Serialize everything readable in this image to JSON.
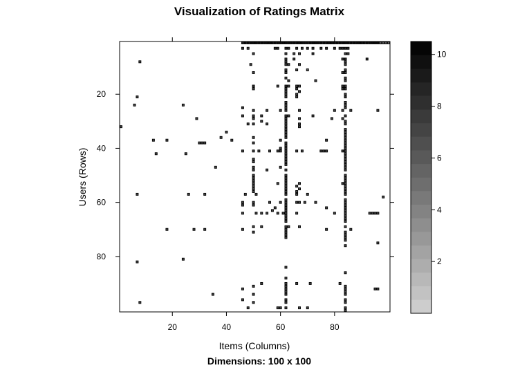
{
  "chart_data": {
    "type": "heatmap",
    "title": "Visualization of Ratings Matrix",
    "subtitle": "Dimensions: 100 x 100",
    "xlabel": "Items (Columns)",
    "ylabel": "Users (Rows)",
    "xlim": [
      0.5,
      100.5
    ],
    "ylim": [
      0.5,
      100.5
    ],
    "y_reversed": true,
    "x_ticks": [
      "20",
      "40",
      "60",
      "80"
    ],
    "y_ticks": [
      "20",
      "40",
      "60",
      "80"
    ],
    "colorbar": {
      "range": [
        0,
        10.5
      ],
      "ticks": [
        "2",
        "4",
        "6",
        "8",
        "10"
      ],
      "low_color": "#d9d9d9",
      "high_color": "#000000"
    },
    "value_encoding": "cells as [column, row, rating]",
    "cells": [
      [
        46,
        1,
        9
      ],
      [
        47,
        1,
        10
      ],
      [
        48,
        1,
        10
      ],
      [
        49,
        1,
        10
      ],
      [
        50,
        1,
        10
      ],
      [
        51,
        1,
        10
      ],
      [
        52,
        1,
        10
      ],
      [
        53,
        1,
        10
      ],
      [
        54,
        1,
        10
      ],
      [
        55,
        1,
        10
      ],
      [
        56,
        1,
        10
      ],
      [
        57,
        1,
        10
      ],
      [
        58,
        1,
        10
      ],
      [
        59,
        1,
        10
      ],
      [
        60,
        1,
        10
      ],
      [
        61,
        1,
        10
      ],
      [
        62,
        1,
        10
      ],
      [
        63,
        1,
        10
      ],
      [
        64,
        1,
        10
      ],
      [
        65,
        1,
        10
      ],
      [
        66,
        1,
        10
      ],
      [
        67,
        1,
        10
      ],
      [
        68,
        1,
        10
      ],
      [
        69,
        1,
        10
      ],
      [
        70,
        1,
        10
      ],
      [
        71,
        1,
        10
      ],
      [
        72,
        1,
        10
      ],
      [
        73,
        1,
        10
      ],
      [
        74,
        1,
        10
      ],
      [
        75,
        1,
        10
      ],
      [
        76,
        1,
        10
      ],
      [
        77,
        1,
        10
      ],
      [
        78,
        1,
        10
      ],
      [
        79,
        1,
        10
      ],
      [
        80,
        1,
        10
      ],
      [
        81,
        1,
        10
      ],
      [
        82,
        1,
        10
      ],
      [
        83,
        1,
        10
      ],
      [
        84,
        1,
        10
      ],
      [
        85,
        1,
        10
      ],
      [
        86,
        1,
        10
      ],
      [
        87,
        1,
        10
      ],
      [
        88,
        1,
        10
      ],
      [
        89,
        1,
        10
      ],
      [
        90,
        1,
        10
      ],
      [
        91,
        1,
        10
      ],
      [
        92,
        1,
        10
      ],
      [
        93,
        1,
        10
      ],
      [
        94,
        1,
        10
      ],
      [
        95,
        1,
        10
      ],
      [
        96,
        1,
        10
      ],
      [
        97,
        1,
        6
      ],
      [
        98,
        1,
        6
      ],
      [
        99,
        1,
        6
      ],
      [
        100,
        1,
        6
      ],
      [
        46,
        3,
        8
      ],
      [
        48,
        3,
        7
      ],
      [
        58,
        3,
        8
      ],
      [
        59,
        3,
        8
      ],
      [
        62,
        3,
        8
      ],
      [
        63,
        3,
        8
      ],
      [
        66,
        3,
        8
      ],
      [
        68,
        3,
        8
      ],
      [
        70,
        3,
        8
      ],
      [
        72,
        3,
        8
      ],
      [
        75,
        3,
        8
      ],
      [
        77,
        3,
        8
      ],
      [
        80,
        3,
        8
      ],
      [
        82,
        3,
        8
      ],
      [
        83,
        3,
        8
      ],
      [
        84,
        3,
        8
      ],
      [
        85,
        3,
        8
      ],
      [
        50,
        5,
        7
      ],
      [
        62,
        5,
        7
      ],
      [
        65,
        5,
        7
      ],
      [
        67,
        5,
        7
      ],
      [
        72,
        5,
        8
      ],
      [
        84,
        5,
        7
      ],
      [
        85,
        5,
        7
      ],
      [
        62,
        7,
        7
      ],
      [
        65,
        7,
        7
      ],
      [
        83,
        7,
        7
      ],
      [
        84,
        7,
        8
      ],
      [
        92,
        7,
        8
      ],
      [
        8,
        8,
        7
      ],
      [
        62,
        8,
        7
      ],
      [
        84,
        8,
        7
      ],
      [
        49,
        9,
        7
      ],
      [
        62,
        9,
        7
      ],
      [
        63,
        9,
        7
      ],
      [
        67,
        9,
        7
      ],
      [
        84,
        9,
        7
      ],
      [
        62,
        11,
        7
      ],
      [
        66,
        11,
        7
      ],
      [
        70,
        11,
        6
      ],
      [
        84,
        11,
        7
      ],
      [
        50,
        12,
        7
      ],
      [
        62,
        12,
        7
      ],
      [
        83,
        12,
        7
      ],
      [
        84,
        12,
        7
      ],
      [
        62,
        14,
        7
      ],
      [
        84,
        14,
        7
      ],
      [
        63,
        15,
        8
      ],
      [
        73,
        15,
        7
      ],
      [
        84,
        15,
        7
      ],
      [
        50,
        17,
        8
      ],
      [
        59,
        17,
        7
      ],
      [
        62,
        17,
        8
      ],
      [
        63,
        17,
        7
      ],
      [
        66,
        17,
        7
      ],
      [
        67,
        17,
        7
      ],
      [
        83,
        17,
        7
      ],
      [
        84,
        17,
        7
      ],
      [
        50,
        18,
        7
      ],
      [
        62,
        18,
        7
      ],
      [
        66,
        18,
        7
      ],
      [
        83,
        18,
        7
      ],
      [
        84,
        18,
        7
      ],
      [
        62,
        19,
        7
      ],
      [
        67,
        19,
        7
      ],
      [
        62,
        20,
        7
      ],
      [
        66,
        20,
        7
      ],
      [
        84,
        20,
        7
      ],
      [
        7,
        21,
        7
      ],
      [
        62,
        21,
        7
      ],
      [
        66,
        21,
        7
      ],
      [
        84,
        21,
        8
      ],
      [
        62,
        23,
        7
      ],
      [
        84,
        23,
        7
      ],
      [
        6,
        24,
        7
      ],
      [
        24,
        24,
        7
      ],
      [
        62,
        24,
        7
      ],
      [
        84,
        24,
        7
      ],
      [
        46,
        25,
        8
      ],
      [
        62,
        25,
        7
      ],
      [
        84,
        25,
        7
      ],
      [
        50,
        26,
        7
      ],
      [
        55,
        26,
        7
      ],
      [
        60,
        26,
        7
      ],
      [
        62,
        26,
        7
      ],
      [
        67,
        26,
        7
      ],
      [
        80,
        26,
        7
      ],
      [
        83,
        26,
        7
      ],
      [
        86,
        26,
        7
      ],
      [
        96,
        26,
        7
      ],
      [
        46,
        28,
        7
      ],
      [
        50,
        28,
        7
      ],
      [
        53,
        28,
        7
      ],
      [
        62,
        28,
        7
      ],
      [
        63,
        28,
        7
      ],
      [
        72,
        28,
        7
      ],
      [
        84,
        28,
        7
      ],
      [
        29,
        29,
        7
      ],
      [
        50,
        29,
        7
      ],
      [
        62,
        29,
        7
      ],
      [
        67,
        29,
        7
      ],
      [
        79,
        29,
        7
      ],
      [
        83,
        29,
        7
      ],
      [
        53,
        30,
        7
      ],
      [
        62,
        30,
        7
      ],
      [
        84,
        30,
        7
      ],
      [
        48,
        31,
        7
      ],
      [
        50,
        31,
        7
      ],
      [
        55,
        31,
        7
      ],
      [
        62,
        31,
        7
      ],
      [
        67,
        31,
        7
      ],
      [
        84,
        31,
        7
      ],
      [
        1,
        32,
        7
      ],
      [
        62,
        32,
        7
      ],
      [
        67,
        32,
        7
      ],
      [
        62,
        33,
        7
      ],
      [
        84,
        33,
        7
      ],
      [
        40,
        34,
        7
      ],
      [
        62,
        34,
        7
      ],
      [
        84,
        34,
        7
      ],
      [
        62,
        35,
        7
      ],
      [
        84,
        35,
        7
      ],
      [
        38,
        36,
        7
      ],
      [
        50,
        36,
        7
      ],
      [
        62,
        36,
        7
      ],
      [
        84,
        36,
        7
      ],
      [
        13,
        37,
        7
      ],
      [
        18,
        37,
        7
      ],
      [
        42,
        37,
        7
      ],
      [
        60,
        37,
        7
      ],
      [
        77,
        37,
        7
      ],
      [
        84,
        37,
        7
      ],
      [
        30,
        38,
        7
      ],
      [
        31,
        38,
        7
      ],
      [
        32,
        38,
        7
      ],
      [
        50,
        38,
        7
      ],
      [
        62,
        38,
        7
      ],
      [
        84,
        38,
        7
      ],
      [
        62,
        39,
        7
      ],
      [
        84,
        39,
        7
      ],
      [
        60,
        40,
        7
      ],
      [
        62,
        40,
        7
      ],
      [
        84,
        40,
        7
      ],
      [
        46,
        41,
        7
      ],
      [
        50,
        41,
        7
      ],
      [
        52,
        41,
        7
      ],
      [
        56,
        41,
        7
      ],
      [
        59,
        41,
        7
      ],
      [
        60,
        41,
        7
      ],
      [
        62,
        41,
        7
      ],
      [
        66,
        41,
        7
      ],
      [
        68,
        41,
        7
      ],
      [
        75,
        41,
        7
      ],
      [
        76,
        41,
        7
      ],
      [
        77,
        41,
        7
      ],
      [
        83,
        41,
        7
      ],
      [
        84,
        41,
        7
      ],
      [
        14,
        42,
        7
      ],
      [
        25,
        42,
        7
      ],
      [
        62,
        42,
        7
      ],
      [
        84,
        42,
        7
      ],
      [
        62,
        43,
        7
      ],
      [
        84,
        43,
        7
      ],
      [
        50,
        44,
        7
      ],
      [
        62,
        44,
        7
      ],
      [
        84,
        44,
        7
      ],
      [
        50,
        45,
        7
      ],
      [
        62,
        45,
        7
      ],
      [
        84,
        45,
        7
      ],
      [
        62,
        46,
        7
      ],
      [
        84,
        46,
        7
      ],
      [
        36,
        47,
        7
      ],
      [
        50,
        47,
        7
      ],
      [
        60,
        47,
        7
      ],
      [
        84,
        47,
        7
      ],
      [
        50,
        48,
        7
      ],
      [
        55,
        48,
        7
      ],
      [
        62,
        48,
        7
      ],
      [
        84,
        48,
        7
      ],
      [
        50,
        50,
        7
      ],
      [
        62,
        50,
        7
      ],
      [
        84,
        50,
        7
      ],
      [
        50,
        51,
        7
      ],
      [
        62,
        51,
        7
      ],
      [
        84,
        51,
        7
      ],
      [
        50,
        52,
        7
      ],
      [
        62,
        52,
        7
      ],
      [
        84,
        52,
        7
      ],
      [
        50,
        53,
        7
      ],
      [
        59,
        53,
        7
      ],
      [
        62,
        53,
        7
      ],
      [
        67,
        53,
        7
      ],
      [
        83,
        53,
        7
      ],
      [
        84,
        53,
        7
      ],
      [
        50,
        54,
        7
      ],
      [
        62,
        54,
        7
      ],
      [
        66,
        54,
        7
      ],
      [
        84,
        54,
        7
      ],
      [
        50,
        55,
        7
      ],
      [
        62,
        55,
        7
      ],
      [
        67,
        55,
        7
      ],
      [
        84,
        55,
        7
      ],
      [
        50,
        56,
        7
      ],
      [
        62,
        56,
        7
      ],
      [
        66,
        56,
        7
      ],
      [
        84,
        56,
        7
      ],
      [
        7,
        57,
        7
      ],
      [
        26,
        57,
        7
      ],
      [
        32,
        57,
        7
      ],
      [
        47,
        57,
        7
      ],
      [
        51,
        57,
        7
      ],
      [
        62,
        57,
        7
      ],
      [
        66,
        57,
        7
      ],
      [
        70,
        57,
        7
      ],
      [
        84,
        57,
        7
      ],
      [
        98,
        58,
        7
      ],
      [
        62,
        59,
        7
      ],
      [
        84,
        59,
        7
      ],
      [
        46,
        60,
        7
      ],
      [
        50,
        60,
        7
      ],
      [
        56,
        60,
        7
      ],
      [
        60,
        60,
        7
      ],
      [
        62,
        60,
        7
      ],
      [
        66,
        60,
        7
      ],
      [
        67,
        60,
        7
      ],
      [
        69,
        60,
        7
      ],
      [
        73,
        60,
        7
      ],
      [
        84,
        60,
        7
      ],
      [
        46,
        61,
        7
      ],
      [
        50,
        61,
        7
      ],
      [
        62,
        61,
        7
      ],
      [
        84,
        61,
        7
      ],
      [
        58,
        62,
        7
      ],
      [
        62,
        62,
        7
      ],
      [
        77,
        62,
        7
      ],
      [
        84,
        62,
        7
      ],
      [
        57,
        63,
        7
      ],
      [
        62,
        63,
        7
      ],
      [
        84,
        63,
        7
      ],
      [
        46,
        64,
        7
      ],
      [
        51,
        64,
        7
      ],
      [
        53,
        64,
        7
      ],
      [
        55,
        64,
        7
      ],
      [
        59,
        64,
        7
      ],
      [
        61,
        64,
        7
      ],
      [
        62,
        64,
        7
      ],
      [
        66,
        64,
        7
      ],
      [
        80,
        64,
        7
      ],
      [
        84,
        64,
        7
      ],
      [
        93,
        64,
        7
      ],
      [
        94,
        64,
        7
      ],
      [
        95,
        64,
        7
      ],
      [
        96,
        64,
        7
      ],
      [
        62,
        65,
        7
      ],
      [
        84,
        65,
        7
      ],
      [
        62,
        66,
        7
      ],
      [
        84,
        66,
        7
      ],
      [
        62,
        67,
        7
      ],
      [
        84,
        67,
        7
      ],
      [
        50,
        69,
        7
      ],
      [
        53,
        69,
        7
      ],
      [
        62,
        69,
        7
      ],
      [
        63,
        69,
        7
      ],
      [
        67,
        69,
        7
      ],
      [
        84,
        69,
        7
      ],
      [
        18,
        70,
        7
      ],
      [
        28,
        70,
        7
      ],
      [
        32,
        70,
        7
      ],
      [
        46,
        70,
        7
      ],
      [
        62,
        70,
        7
      ],
      [
        77,
        70,
        7
      ],
      [
        86,
        70,
        7
      ],
      [
        50,
        71,
        7
      ],
      [
        62,
        71,
        7
      ],
      [
        84,
        71,
        7
      ],
      [
        62,
        72,
        7
      ],
      [
        84,
        72,
        7
      ],
      [
        62,
        73,
        7
      ],
      [
        84,
        73,
        7
      ],
      [
        84,
        74,
        7
      ],
      [
        96,
        75,
        7
      ],
      [
        84,
        76,
        7
      ],
      [
        24,
        81,
        7
      ],
      [
        7,
        82,
        7
      ],
      [
        62,
        84,
        7
      ],
      [
        84,
        86,
        7
      ],
      [
        62,
        88,
        7
      ],
      [
        53,
        90,
        7
      ],
      [
        62,
        90,
        7
      ],
      [
        66,
        90,
        7
      ],
      [
        71,
        90,
        7
      ],
      [
        82,
        90,
        7
      ],
      [
        50,
        91,
        7
      ],
      [
        62,
        91,
        7
      ],
      [
        84,
        91,
        7
      ],
      [
        46,
        92,
        7
      ],
      [
        62,
        92,
        7
      ],
      [
        84,
        92,
        7
      ],
      [
        95,
        92,
        7
      ],
      [
        96,
        92,
        7
      ],
      [
        62,
        93,
        7
      ],
      [
        84,
        93,
        7
      ],
      [
        35,
        94,
        7
      ],
      [
        50,
        94,
        7
      ],
      [
        62,
        94,
        7
      ],
      [
        84,
        94,
        7
      ],
      [
        46,
        96,
        7
      ],
      [
        62,
        96,
        7
      ],
      [
        84,
        96,
        7
      ],
      [
        8,
        97,
        7
      ],
      [
        50,
        97,
        7
      ],
      [
        62,
        97,
        7
      ],
      [
        84,
        97,
        7
      ],
      [
        48,
        99,
        7
      ],
      [
        59,
        99,
        7
      ],
      [
        60,
        99,
        7
      ],
      [
        62,
        99,
        7
      ],
      [
        67,
        99,
        7
      ],
      [
        70,
        99,
        7
      ],
      [
        84,
        99,
        7
      ],
      [
        84,
        100,
        7
      ]
    ]
  }
}
